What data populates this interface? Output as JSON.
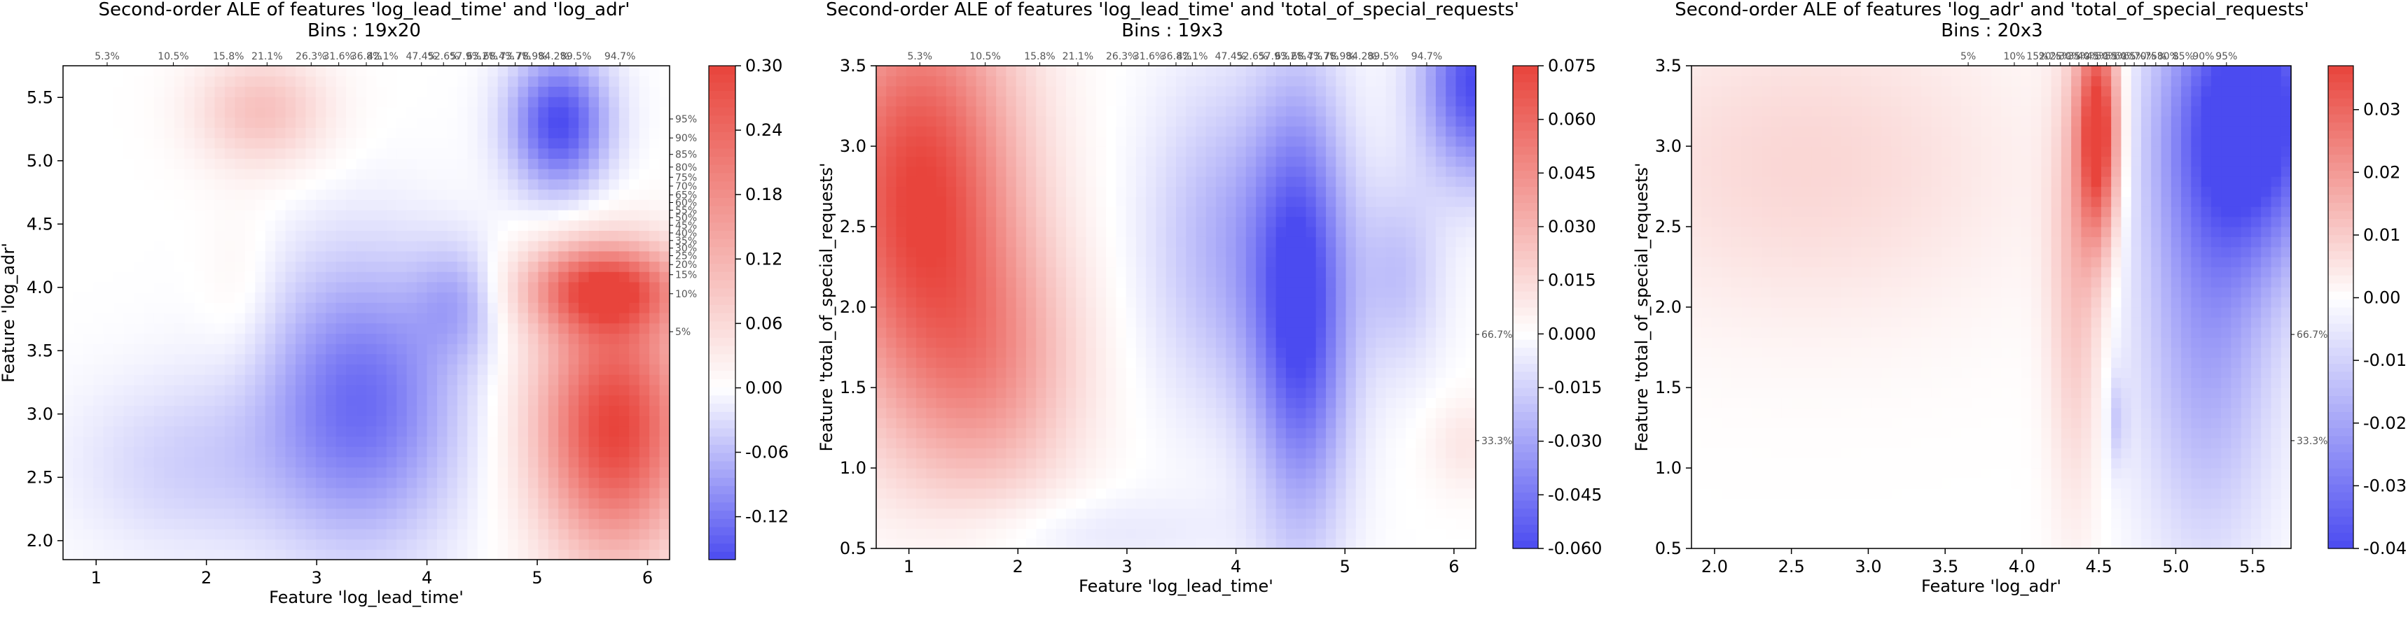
{
  "figure": {
    "background": "#ffffff",
    "colormap": [
      "#4b4bf0",
      "#ffffff",
      "#e8443c"
    ]
  },
  "chart_data": [
    {
      "type": "heatmap",
      "title": "Second-order ALE of features 'log_lead_time' and 'log_adr'",
      "subtitle": "Bins : 19x20",
      "xlabel": "Feature 'log_lead_time'",
      "ylabel": "Feature 'log_adr'",
      "xlim": [
        0.7,
        6.2
      ],
      "ylim": [
        1.85,
        5.75
      ],
      "xticks": [
        1,
        2,
        3,
        4,
        5,
        6
      ],
      "yticks": [
        2.0,
        2.5,
        3.0,
        3.5,
        4.0,
        4.5,
        5.0,
        5.5
      ],
      "x_deciles": [
        {
          "x": 1.1,
          "label": "5.3%"
        },
        {
          "x": 1.7,
          "label": "10.5%"
        },
        {
          "x": 2.2,
          "label": "15.8%"
        },
        {
          "x": 2.55,
          "label": "21.1%"
        },
        {
          "x": 2.95,
          "label": "26.3%"
        },
        {
          "x": 3.2,
          "label": "31.6%"
        },
        {
          "x": 3.45,
          "label": "36.8%"
        },
        {
          "x": 3.6,
          "label": "42.1%"
        },
        {
          "x": 3.95,
          "label": "47.4%"
        },
        {
          "x": 4.15,
          "label": "52.6%"
        },
        {
          "x": 4.35,
          "label": "57.9%"
        },
        {
          "x": 4.5,
          "label": "63.2%"
        },
        {
          "x": 4.65,
          "label": "68.4%"
        },
        {
          "x": 4.8,
          "label": "73.7%"
        },
        {
          "x": 4.95,
          "label": "78.9%"
        },
        {
          "x": 5.15,
          "label": "84.2%"
        },
        {
          "x": 5.35,
          "label": "89.5%"
        },
        {
          "x": 5.75,
          "label": "94.7%"
        }
      ],
      "y_deciles": [
        {
          "y": 3.65,
          "label": "5%"
        },
        {
          "y": 3.95,
          "label": "10%"
        },
        {
          "y": 4.1,
          "label": "15%"
        },
        {
          "y": 4.18,
          "label": "20%"
        },
        {
          "y": 4.25,
          "label": "25%"
        },
        {
          "y": 4.31,
          "label": "30%"
        },
        {
          "y": 4.37,
          "label": "35%"
        },
        {
          "y": 4.43,
          "label": "40%"
        },
        {
          "y": 4.49,
          "label": "45%"
        },
        {
          "y": 4.55,
          "label": "50%"
        },
        {
          "y": 4.61,
          "label": "55%"
        },
        {
          "y": 4.67,
          "label": "60%"
        },
        {
          "y": 4.73,
          "label": "65%"
        },
        {
          "y": 4.8,
          "label": "70%"
        },
        {
          "y": 4.87,
          "label": "75%"
        },
        {
          "y": 4.95,
          "label": "80%"
        },
        {
          "y": 5.05,
          "label": "85%"
        },
        {
          "y": 5.18,
          "label": "90%"
        },
        {
          "y": 5.33,
          "label": "95%"
        }
      ],
      "colorbar": {
        "min": -0.16,
        "max": 0.3,
        "ticks": [
          -0.12,
          -0.06,
          0.0,
          0.06,
          0.12,
          0.18,
          0.24,
          0.3
        ]
      },
      "blobs": [
        {
          "x": 5.2,
          "y": 5.3,
          "sx": 0.45,
          "sy": 0.55,
          "v": -0.16
        },
        {
          "x": 3.4,
          "y": 3.1,
          "sx": 0.9,
          "sy": 1.1,
          "v": -0.13
        },
        {
          "x": 4.3,
          "y": 3.9,
          "sx": 0.4,
          "sy": 0.45,
          "v": -0.06
        },
        {
          "x": 1.8,
          "y": 2.6,
          "sx": 1.0,
          "sy": 0.7,
          "v": -0.04
        },
        {
          "x": 5.7,
          "y": 2.9,
          "sx": 0.7,
          "sy": 1.0,
          "v": 0.3
        },
        {
          "x": 5.6,
          "y": 4.0,
          "sx": 0.7,
          "sy": 0.35,
          "v": 0.25
        },
        {
          "x": 2.5,
          "y": 5.4,
          "sx": 0.6,
          "sy": 0.45,
          "v": 0.1
        },
        {
          "x": 2.3,
          "y": 4.0,
          "sx": 0.35,
          "sy": 0.7,
          "v": 0.02
        }
      ]
    },
    {
      "type": "heatmap",
      "title": "Second-order ALE of features 'log_lead_time' and 'total_of_special_requests'",
      "subtitle": "Bins : 19x3",
      "xlabel": "Feature 'log_lead_time'",
      "ylabel": "Feature 'total_of_special_requests'",
      "xlim": [
        0.7,
        6.2
      ],
      "ylim": [
        0.5,
        3.5
      ],
      "xticks": [
        1,
        2,
        3,
        4,
        5,
        6
      ],
      "yticks": [
        0.5,
        1.0,
        1.5,
        2.0,
        2.5,
        3.0,
        3.5
      ],
      "x_deciles": [
        {
          "x": 1.1,
          "label": "5.3%"
        },
        {
          "x": 1.7,
          "label": "10.5%"
        },
        {
          "x": 2.2,
          "label": "15.8%"
        },
        {
          "x": 2.55,
          "label": "21.1%"
        },
        {
          "x": 2.95,
          "label": "26.3%"
        },
        {
          "x": 3.2,
          "label": "31.6%"
        },
        {
          "x": 3.45,
          "label": "36.8%"
        },
        {
          "x": 3.6,
          "label": "42.1%"
        },
        {
          "x": 3.95,
          "label": "47.4%"
        },
        {
          "x": 4.15,
          "label": "52.6%"
        },
        {
          "x": 4.35,
          "label": "57.9%"
        },
        {
          "x": 4.5,
          "label": "63.2%"
        },
        {
          "x": 4.65,
          "label": "68.4%"
        },
        {
          "x": 4.8,
          "label": "73.7%"
        },
        {
          "x": 4.95,
          "label": "78.9%"
        },
        {
          "x": 5.15,
          "label": "84.2%"
        },
        {
          "x": 5.35,
          "label": "89.5%"
        },
        {
          "x": 5.75,
          "label": "94.7%"
        }
      ],
      "y_deciles": [
        {
          "y": 1.17,
          "label": "33.3%"
        },
        {
          "y": 1.83,
          "label": "66.7%"
        }
      ],
      "colorbar": {
        "min": -0.06,
        "max": 0.075,
        "ticks": [
          -0.06,
          -0.045,
          -0.03,
          -0.015,
          0.0,
          0.015,
          0.03,
          0.045,
          0.06,
          0.075
        ]
      },
      "blobs": [
        {
          "x": 1.1,
          "y": 2.7,
          "sx": 0.9,
          "sy": 1.3,
          "v": 0.075
        },
        {
          "x": 1.8,
          "y": 1.6,
          "sx": 0.8,
          "sy": 0.8,
          "v": 0.03
        },
        {
          "x": 4.6,
          "y": 2.0,
          "sx": 0.45,
          "sy": 1.3,
          "v": -0.06
        },
        {
          "x": 6.2,
          "y": 3.4,
          "sx": 0.5,
          "sy": 0.6,
          "v": -0.06
        },
        {
          "x": 3.9,
          "y": 2.4,
          "sx": 0.7,
          "sy": 1.0,
          "v": -0.025
        },
        {
          "x": 5.5,
          "y": 2.2,
          "sx": 0.4,
          "sy": 0.6,
          "v": -0.02
        },
        {
          "x": 2.6,
          "y": 0.6,
          "sx": 1.4,
          "sy": 0.25,
          "v": -0.008
        },
        {
          "x": 6.1,
          "y": 1.15,
          "sx": 0.35,
          "sy": 0.3,
          "v": 0.01
        }
      ]
    },
    {
      "type": "heatmap",
      "title": "Second-order ALE of features 'log_adr' and 'total_of_special_requests'",
      "subtitle": "Bins : 20x3",
      "xlabel": "Feature 'log_adr'",
      "ylabel": "Feature 'total_of_special_requests'",
      "xlim": [
        1.85,
        5.75
      ],
      "ylim": [
        0.5,
        3.5
      ],
      "xticks": [
        2.0,
        2.5,
        3.0,
        3.5,
        4.0,
        4.5,
        5.0,
        5.5
      ],
      "yticks": [
        0.5,
        1.0,
        1.5,
        2.0,
        2.5,
        3.0,
        3.5
      ],
      "x_deciles": [
        {
          "x": 3.65,
          "label": "5%"
        },
        {
          "x": 3.95,
          "label": "10%"
        },
        {
          "x": 4.1,
          "label": "15%"
        },
        {
          "x": 4.18,
          "label": "20%"
        },
        {
          "x": 4.25,
          "label": "25%"
        },
        {
          "x": 4.31,
          "label": "30%"
        },
        {
          "x": 4.37,
          "label": "35%"
        },
        {
          "x": 4.43,
          "label": "40%"
        },
        {
          "x": 4.49,
          "label": "45%"
        },
        {
          "x": 4.55,
          "label": "50%"
        },
        {
          "x": 4.61,
          "label": "55%"
        },
        {
          "x": 4.67,
          "label": "60%"
        },
        {
          "x": 4.73,
          "label": "65%"
        },
        {
          "x": 4.8,
          "label": "70%"
        },
        {
          "x": 4.87,
          "label": "75%"
        },
        {
          "x": 4.95,
          "label": "80%"
        },
        {
          "x": 5.05,
          "label": "85%"
        },
        {
          "x": 5.18,
          "label": "90%"
        },
        {
          "x": 5.33,
          "label": "95%"
        }
      ],
      "y_deciles": [
        {
          "y": 1.17,
          "label": "33.3%"
        },
        {
          "y": 1.83,
          "label": "66.7%"
        }
      ],
      "colorbar": {
        "min": -0.04,
        "max": 0.037,
        "ticks": [
          -0.04,
          -0.03,
          -0.02,
          -0.01,
          0.0,
          0.01,
          0.02,
          0.03
        ]
      },
      "blobs": [
        {
          "x": 4.5,
          "y": 3.1,
          "sx": 0.14,
          "sy": 0.7,
          "v": 0.04
        },
        {
          "x": 4.35,
          "y": 2.2,
          "sx": 0.18,
          "sy": 1.4,
          "v": 0.012
        },
        {
          "x": 5.5,
          "y": 3.2,
          "sx": 0.55,
          "sy": 0.9,
          "v": -0.045
        },
        {
          "x": 5.2,
          "y": 1.9,
          "sx": 0.45,
          "sy": 1.4,
          "v": -0.02
        },
        {
          "x": 2.6,
          "y": 2.9,
          "sx": 1.4,
          "sy": 1.0,
          "v": 0.008
        },
        {
          "x": 4.62,
          "y": 1.3,
          "sx": 0.06,
          "sy": 0.3,
          "v": -0.01
        }
      ]
    }
  ]
}
